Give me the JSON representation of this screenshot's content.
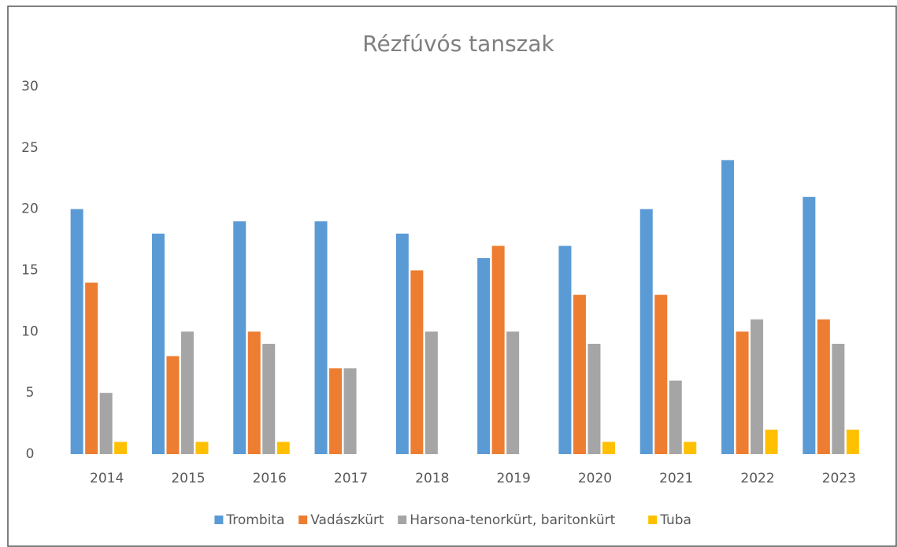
{
  "chart_data": {
    "type": "bar",
    "title": "Rézfúvós tanszak",
    "categories": [
      "2014",
      "2015",
      "2016",
      "2017",
      "2018",
      "2019",
      "2020",
      "2021",
      "2022",
      "2023"
    ],
    "series": [
      {
        "name": "Trombita",
        "color": "#5b9bd5",
        "values": [
          20,
          18,
          19,
          19,
          18,
          16,
          17,
          20,
          24,
          21
        ]
      },
      {
        "name": "Vadászkürt",
        "color": "#ed7d31",
        "values": [
          14,
          8,
          10,
          7,
          15,
          17,
          13,
          13,
          10,
          11
        ]
      },
      {
        "name": "Harsona-tenorkürt, baritonkürt",
        "color": "#a5a5a5",
        "values": [
          5,
          10,
          9,
          7,
          10,
          10,
          9,
          6,
          11,
          9
        ]
      },
      {
        "name": "Tuba",
        "color": "#ffc000",
        "values": [
          1,
          1,
          1,
          0,
          0,
          0,
          1,
          1,
          2,
          2
        ]
      }
    ],
    "ylim": [
      0,
      30
    ],
    "yticks": [
      0,
      5,
      10,
      15,
      20,
      25,
      30
    ],
    "grid": false,
    "legend": "bottom"
  }
}
